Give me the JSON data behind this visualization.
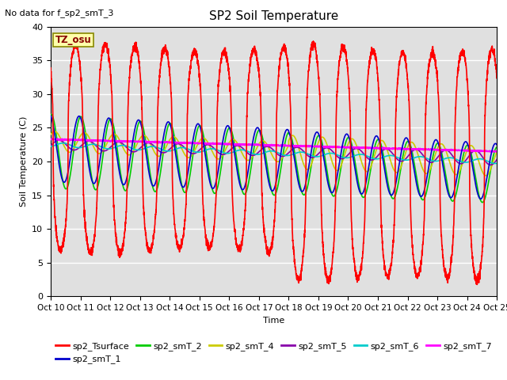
{
  "title": "SP2 Soil Temperature",
  "xlabel": "Time",
  "ylabel": "Soil Temperature (C)",
  "no_data_text": "No data for f_sp2_smT_3",
  "tz_label": "TZ_osu",
  "ylim": [
    0,
    40
  ],
  "background_color": "#e0e0e0",
  "x_start": 10,
  "x_end": 25,
  "x_ticks": [
    10,
    11,
    12,
    13,
    14,
    15,
    16,
    17,
    18,
    19,
    20,
    21,
    22,
    23,
    24,
    25
  ],
  "x_tick_labels": [
    "Oct 10",
    "Oct 11",
    "Oct 12",
    "Oct 13",
    "Oct 14",
    "Oct 15",
    "Oct 16",
    "Oct 17",
    "Oct 18",
    "Oct 19",
    "Oct 20",
    "Oct 21",
    "Oct 22",
    "Oct 23",
    "Oct 24",
    "Oct 25"
  ],
  "series": {
    "sp2_Tsurface": {
      "color": "#ff0000",
      "lw": 1.2
    },
    "sp2_smT_1": {
      "color": "#0000cc",
      "lw": 1.2
    },
    "sp2_smT_2": {
      "color": "#00cc00",
      "lw": 1.2
    },
    "sp2_smT_4": {
      "color": "#cccc00",
      "lw": 1.2
    },
    "sp2_smT_5": {
      "color": "#8800aa",
      "lw": 1.2
    },
    "sp2_smT_6": {
      "color": "#00cccc",
      "lw": 1.2
    },
    "sp2_smT_7": {
      "color": "#ff00ff",
      "lw": 1.2
    }
  },
  "yticks": [
    0,
    5,
    10,
    15,
    20,
    25,
    30,
    35,
    40
  ],
  "figsize": [
    6.4,
    4.8
  ],
  "dpi": 100
}
